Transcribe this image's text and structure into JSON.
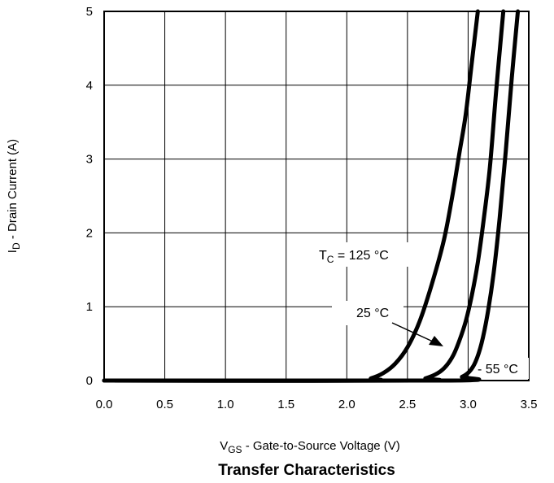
{
  "chart_data": {
    "type": "line",
    "title": "Transfer Characteristics",
    "xlabel": {
      "prefix": "V",
      "sub": "GS",
      "text": " - Gate-to-Source Voltage (V)"
    },
    "ylabel": {
      "prefix": "I",
      "sub": "D",
      "text": " - Drain Current (A)"
    },
    "xlim": [
      0,
      3.5
    ],
    "ylim": [
      0,
      5
    ],
    "x_ticks": [
      0,
      0.5,
      1.0,
      1.5,
      2.0,
      2.5,
      3.0,
      3.5
    ],
    "x_tick_labels": [
      "0.0",
      "0.5",
      "1.0",
      "1.5",
      "2.0",
      "2.5",
      "3.0",
      "3.5"
    ],
    "y_ticks": [
      0,
      1,
      2,
      3,
      4,
      5
    ],
    "y_tick_labels": [
      "0",
      "1",
      "2",
      "3",
      "4",
      "5"
    ],
    "grid": true,
    "line_color": "#000000",
    "series": [
      {
        "x": [
          0.0,
          2.1,
          2.2,
          2.3,
          2.4,
          2.5,
          2.6,
          2.7,
          2.8,
          2.87,
          2.93,
          2.98,
          3.03,
          3.08
        ],
        "y": [
          0.0,
          0.0,
          0.03,
          0.1,
          0.23,
          0.45,
          0.8,
          1.3,
          1.9,
          2.5,
          3.1,
          3.6,
          4.3,
          5.0
        ]
      },
      {
        "x": [
          0.0,
          2.55,
          2.65,
          2.75,
          2.82,
          2.88,
          2.93,
          2.98,
          3.03,
          3.08,
          3.13,
          3.18,
          3.23,
          3.29
        ],
        "y": [
          0.0,
          0.0,
          0.03,
          0.1,
          0.2,
          0.35,
          0.55,
          0.8,
          1.15,
          1.6,
          2.2,
          2.9,
          3.9,
          5.0
        ]
      },
      {
        "x": [
          0.0,
          2.85,
          2.95,
          3.01,
          3.06,
          3.11,
          3.16,
          3.21,
          3.26,
          3.31,
          3.36,
          3.41
        ],
        "y": [
          0.0,
          0.0,
          0.05,
          0.12,
          0.25,
          0.5,
          0.9,
          1.45,
          2.2,
          3.1,
          4.1,
          5.0
        ]
      }
    ],
    "annotations": {
      "t125_prefix": "T",
      "t125_sub": "C",
      "t125_text": " = 125 °C",
      "t25": "25 °C",
      "t55": "- 55 °C"
    }
  }
}
